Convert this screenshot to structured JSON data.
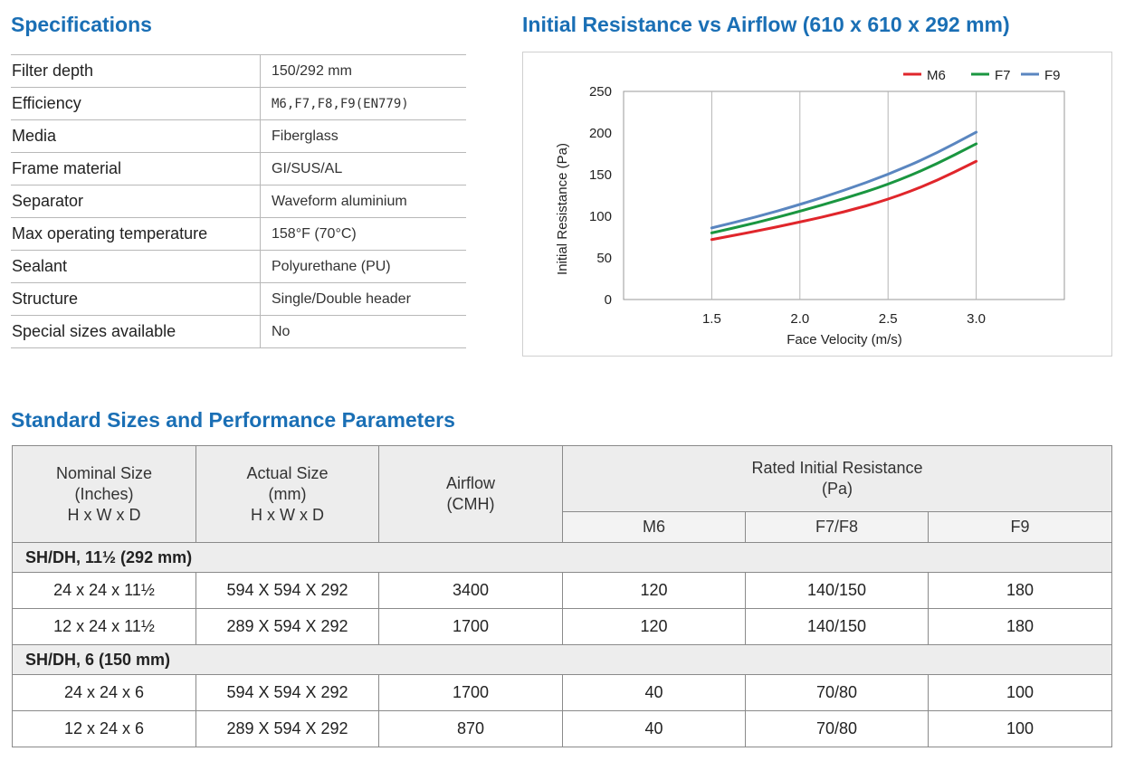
{
  "specs": {
    "title": "Specifications",
    "rows": [
      {
        "label": "Filter depth",
        "value": "150/292 mm"
      },
      {
        "label": "Efficiency",
        "value": "M6,F7,F8,F9(EN779)"
      },
      {
        "label": "Media",
        "value": "Fiberglass"
      },
      {
        "label": "Frame material",
        "value": "GI/SUS/AL"
      },
      {
        "label": "Separator",
        "value": "Waveform aluminium"
      },
      {
        "label": "Max operating temperature",
        "value": "158°F (70°C)"
      },
      {
        "label": "Sealant",
        "value": "Polyurethane (PU)"
      },
      {
        "label": "Structure",
        "value": "Single/Double header"
      },
      {
        "label": "Special sizes available",
        "value": "No"
      }
    ]
  },
  "chart_data": {
    "type": "line",
    "title": "Initial Resistance vs Airflow (610 x 610 x 292 mm)",
    "xlabel": "Face Velocity (m/s)",
    "ylabel": "Initial Resistance (Pa)",
    "xlim": [
      1.0,
      3.5
    ],
    "ylim": [
      0,
      250
    ],
    "xticks": [
      1.5,
      2.0,
      2.5,
      3.0
    ],
    "xtick_labels": [
      "1.5",
      "2.0",
      "2.5",
      "3.0"
    ],
    "yticks": [
      0,
      50,
      100,
      150,
      200,
      250
    ],
    "ytick_labels": [
      "0",
      "50",
      "100",
      "150",
      "200",
      "250"
    ],
    "grid": "vertical",
    "legend_position": "top-right",
    "x": [
      1.5,
      1.75,
      2.0,
      2.25,
      2.5,
      2.75,
      3.0
    ],
    "series": [
      {
        "name": "M6",
        "color": "#e0262b",
        "values": [
          72,
          82,
          93,
          105,
          120,
          140,
          166
        ]
      },
      {
        "name": "F7",
        "color": "#1a9640",
        "values": [
          80,
          92,
          106,
          121,
          138,
          160,
          187
        ]
      },
      {
        "name": "F9",
        "color": "#5a86c0",
        "values": [
          86,
          99,
          114,
          131,
          150,
          173,
          201
        ]
      }
    ]
  },
  "sizes": {
    "title": "Standard Sizes and Performance Parameters",
    "headers": {
      "nominal": [
        "Nominal Size",
        "(Inches)",
        "H x W x D"
      ],
      "actual": [
        "Actual Size",
        "(mm)",
        "H x W x D"
      ],
      "airflow": [
        "Airflow",
        "(CMH)"
      ],
      "resistance": [
        "Rated Initial Resistance",
        "(Pa)"
      ],
      "sub": [
        "M6",
        "F7/F8",
        "F9"
      ]
    },
    "groups": [
      {
        "label": "SH/DH, 11½ (292 mm)",
        "rows": [
          [
            "24 x 24 x 11½",
            "594 X 594 X 292",
            "3400",
            "120",
            "140/150",
            "180"
          ],
          [
            "12 x 24 x 11½",
            "289 X 594 X 292",
            "1700",
            "120",
            "140/150",
            "180"
          ]
        ]
      },
      {
        "label": "SH/DH, 6 (150 mm)",
        "rows": [
          [
            "24 x 24 x 6",
            "594 X 594 X 292",
            "1700",
            "40",
            "70/80",
            "100"
          ],
          [
            "12 x 24 x 6",
            "289 X 594 X 292",
            "870",
            "40",
            "70/80",
            "100"
          ]
        ]
      }
    ]
  }
}
